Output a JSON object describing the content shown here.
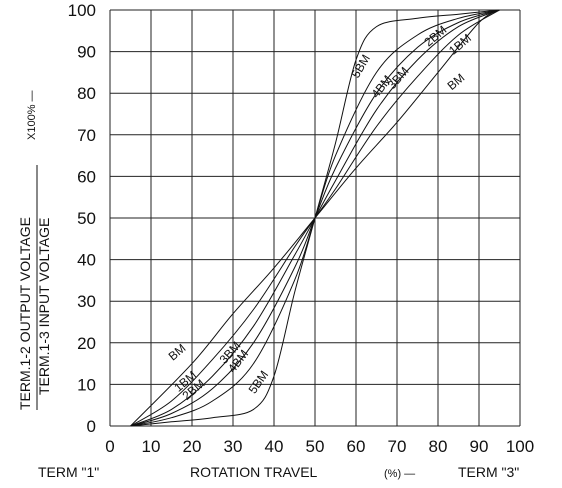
{
  "chart_data": {
    "type": "line",
    "xlim": [
      0,
      100
    ],
    "ylim": [
      0,
      100
    ],
    "grid": true,
    "x_ticks": [
      "0",
      "10",
      "20",
      "30",
      "40",
      "50",
      "60",
      "70",
      "80",
      "90",
      "100"
    ],
    "y_ticks": [
      "0",
      "10",
      "20",
      "30",
      "40",
      "50",
      "60",
      "70",
      "80",
      "90",
      "100"
    ],
    "xlabel": "ROTATION TRAVEL",
    "xlabel_unit": "(%) —",
    "term_left": "TERM \"1\"",
    "term_right": "TERM \"3\"",
    "ylabel_numerator": "TERM.1-2 OUTPUT VOLTAGE",
    "ylabel_denominator": "TERM.1-3 INPUT VOLTAGE",
    "ylabel_multiplier": "X100% —",
    "series": [
      {
        "name": "BM",
        "x": [
          5,
          20,
          30,
          40,
          50,
          60,
          70,
          80,
          90,
          95
        ],
        "y": [
          0,
          15,
          27,
          38,
          50,
          62,
          73,
          85,
          97,
          100
        ]
      },
      {
        "name": "1BM",
        "x": [
          5,
          15,
          25,
          35,
          45,
          50,
          55,
          65,
          75,
          85,
          95
        ],
        "y": [
          0,
          6,
          16,
          28,
          43,
          50,
          57,
          72,
          84,
          94,
          100
        ]
      },
      {
        "name": "2BM",
        "x": [
          5,
          15,
          25,
          35,
          45,
          50,
          55,
          65,
          75,
          85,
          95
        ],
        "y": [
          0,
          4,
          12,
          24,
          41,
          50,
          59,
          76,
          88,
          96,
          100
        ]
      },
      {
        "name": "3BM",
        "x": [
          5,
          15,
          25,
          35,
          45,
          50,
          55,
          65,
          75,
          85,
          95
        ],
        "y": [
          0,
          3,
          9,
          20,
          38,
          50,
          62,
          80,
          91,
          97,
          100
        ]
      },
      {
        "name": "4BM",
        "x": [
          5,
          15,
          25,
          35,
          45,
          50,
          55,
          65,
          75,
          85,
          95
        ],
        "y": [
          0,
          2,
          6,
          15,
          35,
          50,
          65,
          85,
          94,
          98,
          100
        ]
      },
      {
        "name": "5BM",
        "x": [
          5,
          15,
          25,
          35,
          40,
          45,
          50,
          55,
          60,
          65,
          75,
          85,
          95
        ],
        "y": [
          0,
          1,
          2,
          4,
          12,
          32,
          50,
          68,
          88,
          96,
          98,
          99,
          100
        ]
      }
    ],
    "curve_labels": [
      {
        "text": "BM",
        "x": 17,
        "y": 17,
        "angle": -40
      },
      {
        "text": "1BM",
        "x": 19,
        "y": 10,
        "angle": -40
      },
      {
        "text": "2BM",
        "x": 21,
        "y": 8,
        "angle": -40
      },
      {
        "text": "3BM",
        "x": 30,
        "y": 17,
        "angle": -48
      },
      {
        "text": "4BM",
        "x": 32,
        "y": 15,
        "angle": -52
      },
      {
        "text": "5BM",
        "x": 37,
        "y": 10,
        "angle": -55
      },
      {
        "text": "5BM",
        "x": 62,
        "y": 86,
        "angle": -60
      },
      {
        "text": "4BM",
        "x": 67,
        "y": 81,
        "angle": -52
      },
      {
        "text": "3BM",
        "x": 71,
        "y": 83,
        "angle": -48
      },
      {
        "text": "2BM",
        "x": 80,
        "y": 93,
        "angle": -40
      },
      {
        "text": "1BM",
        "x": 86,
        "y": 91,
        "angle": -40
      },
      {
        "text": "BM",
        "x": 85,
        "y": 82,
        "angle": -40
      }
    ]
  }
}
